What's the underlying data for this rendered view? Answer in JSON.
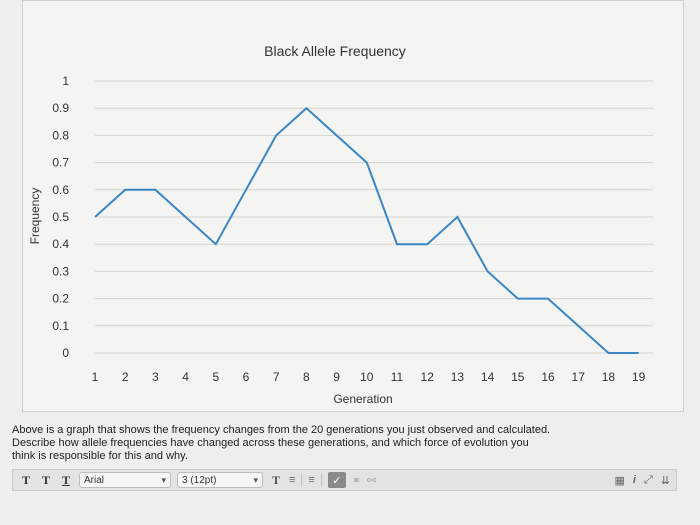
{
  "chart_data": {
    "type": "line",
    "title": "Black Allele Frequency",
    "xlabel": "Generation",
    "ylabel": "Frequency",
    "x": [
      1,
      2,
      3,
      4,
      5,
      6,
      7,
      8,
      9,
      10,
      11,
      12,
      13,
      14,
      15,
      16,
      17,
      18,
      19
    ],
    "x_tick_labels": [
      "1",
      "2",
      "3",
      "4",
      "5",
      "6",
      "7",
      "8",
      "9",
      "10",
      "11",
      "12",
      "13",
      "14",
      "15",
      "16",
      "17",
      "18",
      "19"
    ],
    "y_tick_labels": [
      "0",
      "0.1",
      "0.2",
      "0.3",
      "0.4",
      "0.5",
      "0.6",
      "0.7",
      "0.8",
      "0.9",
      "1"
    ],
    "ylim": [
      0,
      1
    ],
    "grid": true,
    "series": [
      {
        "values": [
          0.5,
          0.6,
          0.6,
          0.5,
          0.4,
          0.6,
          0.8,
          0.9,
          0.8,
          0.7,
          0.4,
          0.4,
          0.5,
          0.3,
          0.2,
          0.2,
          0.1,
          0.0,
          0.0
        ]
      }
    ],
    "colors": {
      "line": "#3b86c4",
      "grid": "#d4d4d0"
    }
  },
  "question": {
    "line1": "Above is a graph that shows the frequency changes from the 20 generations you just observed and calculated.",
    "line2": "Describe how allele frequencies have changed across these generations, and which force of evolution you",
    "line3": "think is responsible for this and why."
  },
  "toolbar": {
    "t1": "T",
    "t2": "T",
    "t3": "T",
    "font_value": "Arial",
    "size_value": "3 (12pt)",
    "text_color": "T",
    "bullets_icon": "bullet-list-icon",
    "numbers_icon": "numbered-list-icon",
    "spell_icon": "spellcheck-icon",
    "link_icon": "link-icon",
    "unlink_icon": "unlink-icon",
    "preview_icon": "preview-icon",
    "italic_info": "i",
    "expand_icon": "expand-icon",
    "more_icon": "chevrons-down-icon"
  }
}
